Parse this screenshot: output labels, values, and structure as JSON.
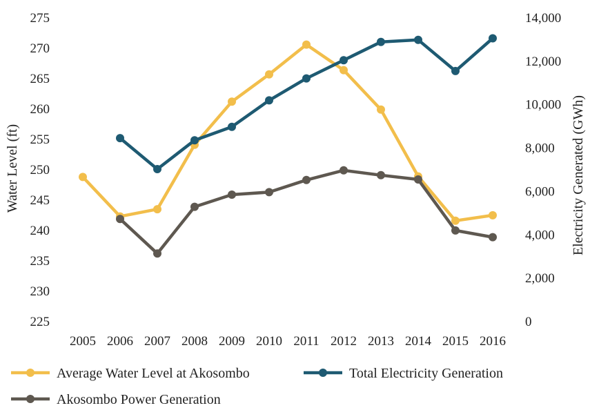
{
  "chart_data": {
    "type": "line",
    "title": "",
    "x": [
      "2005",
      "2006",
      "2007",
      "2008",
      "2009",
      "2010",
      "2011",
      "2012",
      "2013",
      "2014",
      "2015",
      "2016"
    ],
    "left_axis": {
      "label": "Water Level (ft)",
      "ylim": [
        225,
        275
      ],
      "ticks": [
        "225",
        "230",
        "235",
        "240",
        "245",
        "250",
        "255",
        "260",
        "265",
        "270",
        "275"
      ]
    },
    "right_axis": {
      "label": "Electricity Generated (GWh)",
      "ylim": [
        0,
        14000
      ],
      "ticks": [
        "0",
        "2,000",
        "4,000",
        "6,000",
        "8,000",
        "10,000",
        "12,000",
        "14,000"
      ]
    },
    "series": [
      {
        "name": "Average Water Level at Akosombo",
        "axis": "left",
        "color": "#F2BE4B",
        "values": [
          248.7,
          242.2,
          243.4,
          254.0,
          261.1,
          265.6,
          270.5,
          266.3,
          259.8,
          248.8,
          241.5,
          242.4
        ]
      },
      {
        "name": "Total Electricity Generation",
        "axis": "right",
        "color": "#1E5A72",
        "values": [
          null,
          8430,
          7000,
          8330,
          8950,
          10170,
          11180,
          12020,
          12860,
          12960,
          11520,
          13030
        ]
      },
      {
        "name": "Akosombo Power Generation",
        "axis": "left",
        "color": "#5E5850",
        "values": [
          null,
          241.8,
          236.1,
          243.8,
          245.8,
          246.2,
          248.2,
          249.8,
          249.0,
          248.3,
          239.9,
          238.8
        ]
      }
    ],
    "legend_position": "bottom",
    "grid": false
  }
}
